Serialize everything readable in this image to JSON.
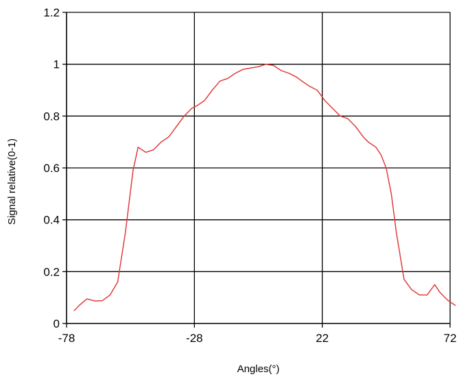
{
  "chart_data": {
    "type": "line",
    "title": "",
    "xlabel": "Angles(°)",
    "ylabel": "Signal relative(0-1)",
    "xlim": [
      -78,
      72
    ],
    "ylim": [
      0,
      1.2
    ],
    "x_ticks": [
      -78,
      -28,
      22,
      72
    ],
    "x_tick_labels": [
      "-78",
      "-28",
      "22",
      "72"
    ],
    "y_ticks": [
      0,
      0.2,
      0.4,
      0.6,
      0.8,
      1.0,
      1.2
    ],
    "y_tick_labels": [
      "0",
      "0.2",
      "0.4",
      "0.6",
      "0.8",
      "1",
      "1.2"
    ],
    "grid": true,
    "legend": "none",
    "line_color": "#e03c3c",
    "series": [
      {
        "x": [
          -75,
          -73,
          -70,
          -67,
          -64,
          -61,
          -58,
          -55,
          -52,
          -50,
          -47,
          -44,
          -41,
          -38,
          -35,
          -32,
          -29,
          -27,
          -24,
          -21,
          -18,
          -15,
          -12,
          -9,
          -6,
          -3,
          0,
          3,
          6,
          9,
          12,
          14,
          17,
          20,
          23,
          26,
          29,
          32,
          35,
          38,
          40,
          43,
          45,
          47,
          49,
          51,
          54,
          57,
          60,
          63,
          66,
          68,
          71,
          74
        ],
        "y": [
          0.05,
          0.07,
          0.095,
          0.087,
          0.088,
          0.11,
          0.16,
          0.35,
          0.59,
          0.68,
          0.66,
          0.67,
          0.7,
          0.72,
          0.76,
          0.8,
          0.83,
          0.84,
          0.86,
          0.9,
          0.935,
          0.945,
          0.965,
          0.98,
          0.985,
          0.99,
          1.0,
          0.995,
          0.975,
          0.965,
          0.95,
          0.935,
          0.915,
          0.9,
          0.86,
          0.83,
          0.8,
          0.79,
          0.76,
          0.72,
          0.7,
          0.68,
          0.65,
          0.6,
          0.5,
          0.35,
          0.17,
          0.13,
          0.11,
          0.11,
          0.15,
          0.12,
          0.09,
          0.07
        ]
      }
    ]
  }
}
